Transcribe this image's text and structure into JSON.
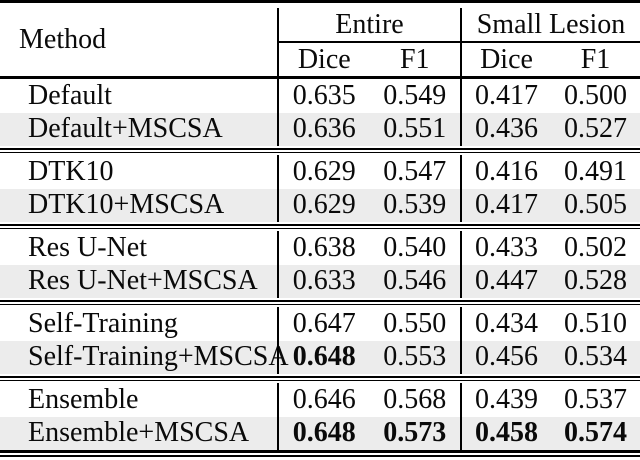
{
  "table": {
    "method_header": "Method",
    "groups": [
      {
        "label": "Entire",
        "subcols": [
          "Dice",
          "F1"
        ]
      },
      {
        "label": "Small Lesion",
        "subcols": [
          "Dice",
          "F1"
        ]
      }
    ],
    "sections": [
      {
        "rows": [
          {
            "method": "Default",
            "values": [
              "0.635",
              "0.549",
              "0.417",
              "0.500"
            ],
            "bold": [
              false,
              false,
              false,
              false
            ],
            "shaded": false
          },
          {
            "method": "Default+MSCSA",
            "values": [
              "0.636",
              "0.551",
              "0.436",
              "0.527"
            ],
            "bold": [
              false,
              false,
              false,
              false
            ],
            "shaded": true
          }
        ]
      },
      {
        "rows": [
          {
            "method": "DTK10",
            "values": [
              "0.629",
              "0.547",
              "0.416",
              "0.491"
            ],
            "bold": [
              false,
              false,
              false,
              false
            ],
            "shaded": false
          },
          {
            "method": "DTK10+MSCSA",
            "values": [
              "0.629",
              "0.539",
              "0.417",
              "0.505"
            ],
            "bold": [
              false,
              false,
              false,
              false
            ],
            "shaded": true
          }
        ]
      },
      {
        "rows": [
          {
            "method": "Res U-Net",
            "values": [
              "0.638",
              "0.540",
              "0.433",
              "0.502"
            ],
            "bold": [
              false,
              false,
              false,
              false
            ],
            "shaded": false
          },
          {
            "method": "Res U-Net+MSCSA",
            "values": [
              "0.633",
              "0.546",
              "0.447",
              "0.528"
            ],
            "bold": [
              false,
              false,
              false,
              false
            ],
            "shaded": true
          }
        ]
      },
      {
        "rows": [
          {
            "method": "Self-Training",
            "values": [
              "0.647",
              "0.550",
              "0.434",
              "0.510"
            ],
            "bold": [
              false,
              false,
              false,
              false
            ],
            "shaded": false
          },
          {
            "method": "Self-Training+MSCSA",
            "values": [
              "0.648",
              "0.553",
              "0.456",
              "0.534"
            ],
            "bold": [
              true,
              false,
              false,
              false
            ],
            "shaded": true
          }
        ]
      },
      {
        "rows": [
          {
            "method": "Ensemble",
            "values": [
              "0.646",
              "0.568",
              "0.439",
              "0.537"
            ],
            "bold": [
              false,
              false,
              false,
              false
            ],
            "shaded": false
          },
          {
            "method": "Ensemble+MSCSA",
            "values": [
              "0.648",
              "0.573",
              "0.458",
              "0.574"
            ],
            "bold": [
              true,
              true,
              true,
              true
            ],
            "shaded": true
          }
        ]
      }
    ],
    "colors": {
      "shaded_row": "#ececec",
      "rule": "#000000",
      "text": "#0a0a0a",
      "background": "#ffffff"
    }
  }
}
